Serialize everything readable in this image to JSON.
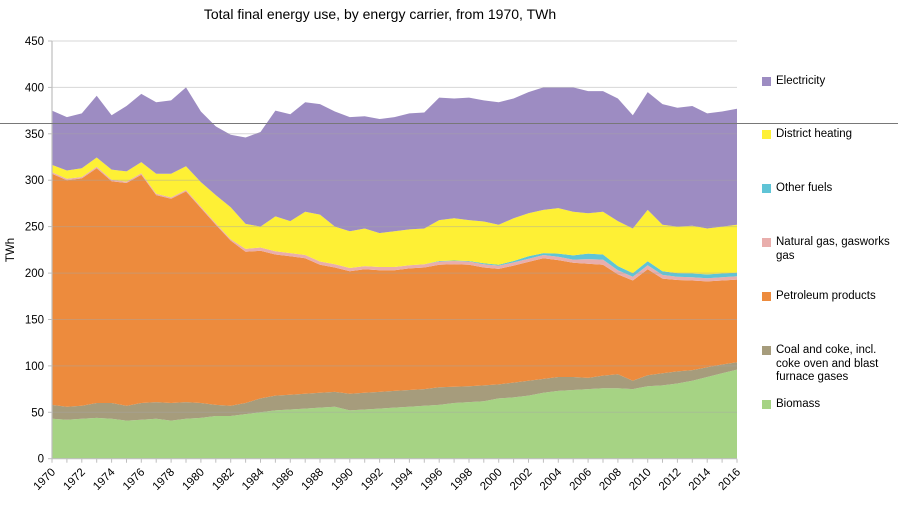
{
  "title": "Total final energy use, by energy carrier, from 1970, TWh",
  "decor_rule": {
    "y_value": 362,
    "color": "#787878"
  },
  "chart_data": {
    "type": "area",
    "stacked": true,
    "title": "Total final energy use, by energy carrier, from 1970, TWh",
    "xlabel": "",
    "ylabel": "TWh",
    "x_start": 1970,
    "x_end": 2016,
    "x_tick_labels": [
      "1970",
      "1972",
      "1974",
      "1976",
      "1978",
      "1980",
      "1982",
      "1984",
      "1986",
      "1988",
      "1990",
      "1992",
      "1994",
      "1996",
      "1998",
      "2000",
      "2002",
      "2004",
      "2006",
      "2008",
      "2010",
      "2012",
      "2014",
      "2016"
    ],
    "y_ticks": [
      0,
      50,
      100,
      150,
      200,
      250,
      300,
      350,
      400,
      450
    ],
    "ylim": [
      0,
      450
    ],
    "grid": true,
    "grid_color": "#a6a6a6",
    "axis_color": "#bfbfbf",
    "legend_position": "right",
    "series": [
      {
        "label": "Biomass",
        "color": "#a6d384",
        "values": [
          43,
          42,
          43,
          44,
          43,
          41,
          42,
          43,
          41,
          43,
          44,
          46,
          46,
          48,
          50,
          52,
          53,
          54,
          55,
          56,
          52,
          53,
          54,
          55,
          56,
          57,
          58,
          60,
          61,
          62,
          65,
          66,
          68,
          71,
          73,
          74,
          75,
          76,
          76,
          75,
          78,
          79,
          81,
          84,
          88,
          92,
          96
        ]
      },
      {
        "label": "Coal and coke, incl. coke oven and blast furnace gases",
        "color": "#a69c7c",
        "values": [
          15,
          14,
          14,
          16,
          17,
          16,
          18,
          18,
          19,
          18,
          16,
          12,
          11,
          12,
          15,
          16,
          16,
          16,
          16,
          16,
          18,
          18,
          18,
          18,
          18,
          18,
          19,
          17.5,
          17,
          17,
          15,
          16,
          16,
          15,
          15,
          14,
          12,
          13.5,
          15,
          9,
          12,
          13,
          13,
          11.5,
          10.5,
          9.5,
          8
        ]
      },
      {
        "label": "Petroleum products",
        "color": "#ed8b3d",
        "values": [
          249,
          244,
          245,
          253,
          239,
          240,
          246,
          223,
          220,
          227,
          210,
          194,
          178,
          163,
          159,
          152,
          149,
          146,
          138,
          134,
          132,
          133,
          131,
          130,
          131,
          131,
          132,
          132,
          131,
          127,
          124.5,
          126,
          128,
          130,
          126,
          123,
          123,
          119.5,
          107.5,
          108,
          114,
          102,
          98.5,
          96.5,
          92.5,
          90.5,
          89
        ]
      },
      {
        "label": "Natural gas, gasworks gas",
        "color": "#e9aeac",
        "values": [
          1.5,
          1.5,
          1.5,
          1.5,
          1.5,
          1.5,
          1.5,
          1.5,
          1.5,
          1.5,
          1.5,
          1.5,
          1.5,
          3,
          3.5,
          3.5,
          3.5,
          3.5,
          3.5,
          3.5,
          3.5,
          3.5,
          3.5,
          3.5,
          3.5,
          3.5,
          3.5,
          3.5,
          3.5,
          3.5,
          3.5,
          3.5,
          3.5,
          3.5,
          3.5,
          3.5,
          5,
          5.5,
          4.5,
          4,
          4.5,
          4,
          3.5,
          3.5,
          3.5,
          3.5,
          3.5
        ]
      },
      {
        "label": "Other fuels",
        "color": "#5fc4d6",
        "values": [
          0,
          0,
          0,
          0,
          0,
          0,
          0,
          0,
          0,
          0,
          0,
          0,
          0,
          0,
          0,
          0,
          0,
          0,
          0,
          0,
          0,
          0,
          0,
          0,
          0,
          0,
          0.5,
          0.5,
          0.5,
          1,
          1,
          1.5,
          2.5,
          2,
          3.5,
          4.5,
          6,
          5.5,
          4.5,
          4,
          4.2,
          4,
          4,
          4,
          4,
          4,
          4
        ]
      },
      {
        "label": "District heating",
        "color": "#fef035",
        "values": [
          8,
          9,
          9.5,
          10,
          11,
          11,
          12,
          21.5,
          25.5,
          25.5,
          26.5,
          30.5,
          34.5,
          27,
          22.5,
          37.5,
          34.5,
          46.5,
          50.5,
          40.5,
          39.5,
          40.5,
          36.5,
          38.5,
          38.5,
          38.5,
          44,
          45.5,
          44,
          45,
          43,
          46,
          46.5,
          46.5,
          49,
          47,
          43.5,
          46,
          48.5,
          48,
          55.3,
          50,
          50,
          51.5,
          49.5,
          50.5,
          51.5
        ]
      },
      {
        "label": "Electricity",
        "color": "#9d8cc2",
        "values": [
          58.5,
          57.5,
          59,
          66.5,
          58.5,
          70.5,
          73.5,
          77,
          79,
          85,
          76,
          74,
          78,
          93,
          102,
          114,
          115,
          118,
          119,
          124,
          123,
          121,
          123,
          123,
          125,
          125,
          132,
          129,
          132,
          130.5,
          132,
          129,
          130.5,
          132,
          130,
          134,
          131.5,
          130,
          132,
          122,
          127,
          130,
          128,
          129,
          124,
          124,
          125
        ]
      }
    ],
    "legend_order_top_to_bottom": [
      "Electricity",
      "District heating",
      "Other fuels",
      "Natural gas, gasworks gas",
      "Petroleum products",
      "Coal and coke, incl. coke oven and blast furnace gases",
      "Biomass"
    ]
  }
}
